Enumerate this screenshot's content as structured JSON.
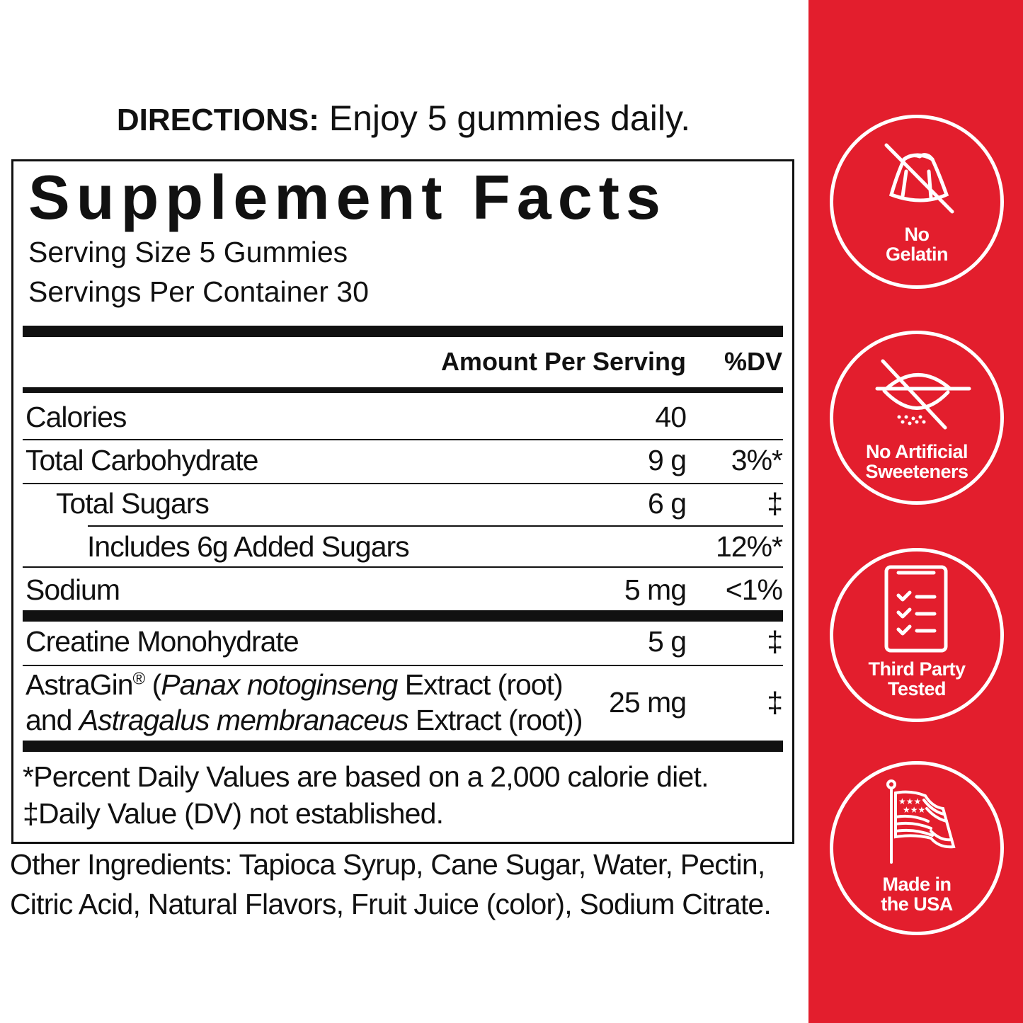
{
  "directions": {
    "label": "DIRECTIONS:",
    "text": " Enjoy 5 gummies daily."
  },
  "facts": {
    "title": "Supplement Facts",
    "serving_size": "Serving Size 5 Gummies",
    "servings_per_container": "Servings Per Container 30",
    "header_amount": "Amount Per Serving",
    "header_dv": "%DV",
    "rows": [
      {
        "name": "Calories",
        "amount": "40",
        "dv": ""
      },
      {
        "name": "Total Carbohydrate",
        "amount": "9 g",
        "dv": "3%*"
      },
      {
        "name": "Total Sugars",
        "amount": "6 g",
        "dv": "‡"
      },
      {
        "name": "Includes 6g Added Sugars",
        "amount": "",
        "dv": "12%*"
      },
      {
        "name": "Sodium",
        "amount": "5 mg",
        "dv": "<1%"
      },
      {
        "name": "Creatine Monohydrate",
        "amount": "5 g",
        "dv": "‡"
      }
    ],
    "astragin": {
      "brand": "AstraGin",
      "reg": "®",
      "line1_a": " (",
      "line1_italic": "Panax notoginseng",
      "line1_b": " Extract (root)",
      "line2_a": "and ",
      "line2_italic": "Astragalus membranaceus",
      "line2_b": " Extract (root))",
      "amount": "25 mg",
      "dv": "‡"
    },
    "footnote1": "*Percent Daily Values are based on a 2,000 calorie diet.",
    "footnote2": "‡Daily Value (DV) not established."
  },
  "other_ingredients": {
    "line1": "Other Ingredients: Tapioca Syrup, Cane Sugar, Water, Pectin,",
    "line2": "Citric Acid, Natural Flavors, Fruit Juice (color), Sodium Citrate."
  },
  "badges": [
    {
      "icon": "no-gelatin-icon",
      "line1": "No",
      "line2": "Gelatin"
    },
    {
      "icon": "no-artificial-sweeteners-icon",
      "line1": "No Artificial",
      "line2": "Sweeteners"
    },
    {
      "icon": "clipboard-checklist-icon",
      "line1": "Third Party",
      "line2": "Tested"
    },
    {
      "icon": "usa-flag-icon",
      "line1": "Made in",
      "line2": "the USA"
    }
  ],
  "colors": {
    "panel": "#e31e2d",
    "text": "#111111"
  }
}
